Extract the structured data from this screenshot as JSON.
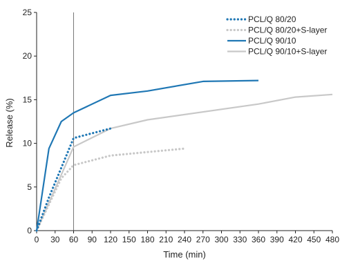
{
  "chart_data": {
    "type": "line",
    "xlabel": "Time (min)",
    "ylabel": "Release (%)",
    "xlim": [
      0,
      480
    ],
    "ylim": [
      0,
      25
    ],
    "xticks": [
      0,
      30,
      60,
      90,
      120,
      150,
      180,
      210,
      240,
      270,
      300,
      330,
      360,
      390,
      420,
      450,
      480
    ],
    "yticks": [
      0,
      5,
      10,
      15,
      20,
      25
    ],
    "vertical_reference_line_x": 60,
    "legend_position": "top-right",
    "grid": false,
    "series": [
      {
        "name": "PCL/Q 80/20",
        "color": "#1f77b4",
        "style": "dotted",
        "x": [
          0,
          20,
          40,
          60,
          120
        ],
        "y": [
          0,
          3.8,
          7.2,
          10.6,
          11.7
        ]
      },
      {
        "name": "PCL/Q 80/20+S-layer",
        "color": "#c8c8c8",
        "style": "dotted",
        "x": [
          0,
          20,
          40,
          60,
          120,
          180,
          240
        ],
        "y": [
          0,
          3.0,
          6.0,
          7.5,
          8.6,
          9.0,
          9.4
        ]
      },
      {
        "name": "PCL/Q 90/10",
        "color": "#1f77b4",
        "style": "solid",
        "x": [
          0,
          20,
          40,
          60,
          120,
          180,
          270,
          360
        ],
        "y": [
          0,
          9.4,
          12.5,
          13.5,
          15.5,
          16.0,
          17.1,
          17.2
        ]
      },
      {
        "name": "PCL/Q 90/10+S-layer",
        "color": "#c8c8c8",
        "style": "solid",
        "x": [
          0,
          60,
          120,
          180,
          360,
          420,
          480
        ],
        "y": [
          0,
          9.6,
          11.7,
          12.7,
          14.5,
          15.3,
          15.6
        ]
      }
    ]
  }
}
